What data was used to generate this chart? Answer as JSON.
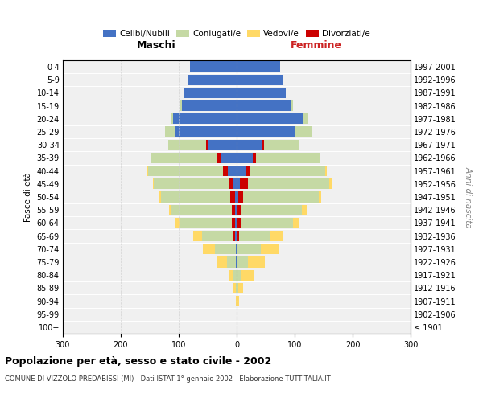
{
  "age_groups": [
    "100+",
    "95-99",
    "90-94",
    "85-89",
    "80-84",
    "75-79",
    "70-74",
    "65-69",
    "60-64",
    "55-59",
    "50-54",
    "45-49",
    "40-44",
    "35-39",
    "30-34",
    "25-29",
    "20-24",
    "15-19",
    "10-14",
    "5-9",
    "0-4"
  ],
  "birth_years": [
    "≤ 1901",
    "1902-1906",
    "1907-1911",
    "1912-1916",
    "1917-1921",
    "1922-1926",
    "1927-1931",
    "1932-1936",
    "1937-1941",
    "1942-1946",
    "1947-1951",
    "1952-1956",
    "1957-1961",
    "1962-1966",
    "1967-1971",
    "1972-1976",
    "1977-1981",
    "1982-1986",
    "1987-1991",
    "1992-1996",
    "1997-2001"
  ],
  "maschi_celibi": [
    0,
    0,
    0,
    0,
    0,
    1,
    2,
    3,
    3,
    3,
    3,
    5,
    15,
    28,
    50,
    105,
    110,
    95,
    90,
    85,
    80
  ],
  "maschi_coniugati": [
    0,
    0,
    0,
    2,
    5,
    15,
    35,
    55,
    90,
    105,
    120,
    130,
    130,
    115,
    65,
    18,
    4,
    2,
    0,
    0,
    0
  ],
  "maschi_vedovi": [
    0,
    0,
    1,
    3,
    8,
    18,
    22,
    15,
    8,
    3,
    2,
    2,
    1,
    1,
    0,
    0,
    0,
    0,
    0,
    0,
    0
  ],
  "maschi_divorziati": [
    0,
    0,
    0,
    0,
    0,
    0,
    0,
    2,
    5,
    5,
    8,
    8,
    8,
    5,
    3,
    0,
    0,
    0,
    0,
    0,
    0
  ],
  "femmine_nubili": [
    0,
    0,
    0,
    0,
    0,
    1,
    2,
    2,
    2,
    2,
    3,
    5,
    15,
    28,
    45,
    100,
    115,
    95,
    85,
    80,
    75
  ],
  "femmine_coniugate": [
    0,
    0,
    1,
    3,
    8,
    18,
    40,
    55,
    90,
    105,
    130,
    140,
    130,
    110,
    60,
    28,
    8,
    2,
    0,
    0,
    0
  ],
  "femmine_vedove": [
    0,
    1,
    3,
    8,
    22,
    30,
    30,
    22,
    12,
    8,
    5,
    5,
    3,
    2,
    1,
    0,
    0,
    0,
    0,
    0,
    0
  ],
  "femmine_divorziate": [
    0,
    0,
    0,
    0,
    0,
    0,
    0,
    2,
    5,
    6,
    8,
    15,
    8,
    5,
    2,
    1,
    0,
    0,
    0,
    0,
    0
  ],
  "color_celibi": "#4472c4",
  "color_coniugati": "#c5d9a4",
  "color_vedovi": "#ffd966",
  "color_divorziati": "#cc0000",
  "legend_labels": [
    "Celibi/Nubili",
    "Coniugati/e",
    "Vedovi/e",
    "Divorziati/e"
  ],
  "title": "Popolazione per età, sesso e stato civile - 2002",
  "subtitle": "COMUNE DI VIZZOLO PREDABISSI (MI) - Dati ISTAT 1° gennaio 2002 - Elaborazione TUTTITALIA.IT",
  "label_maschi": "Maschi",
  "label_femmine": "Femmine",
  "ylabel_left": "Fasce di età",
  "ylabel_right": "Anni di nascita",
  "xlim": 300
}
